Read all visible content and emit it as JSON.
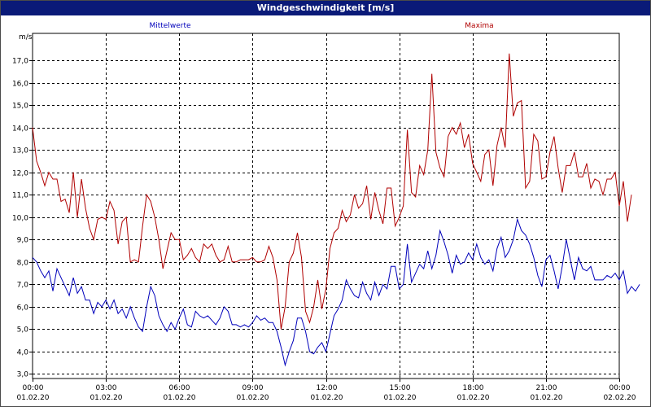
{
  "window": {
    "title": "Windgeschwindigkeit [m/s]"
  },
  "chart_data": {
    "type": "line",
    "title": "Windgeschwindigkeit [m/s]",
    "ylabel": "m/s",
    "xlabel": "",
    "ylim": [
      2.8,
      18.2
    ],
    "yticks": [
      "3,0",
      "4,0",
      "5,0",
      "6,0",
      "7,0",
      "8,0",
      "9,0",
      "10,0",
      "11,0",
      "12,0",
      "13,0",
      "14,0",
      "15,0",
      "16,0",
      "17,0"
    ],
    "xlim": [
      0,
      24
    ],
    "xticks": [
      {
        "x": 0,
        "time": "00:00",
        "date": "01.02.20"
      },
      {
        "x": 3,
        "time": "03:00",
        "date": "01.02.20"
      },
      {
        "x": 6,
        "time": "06:00",
        "date": "01.02.20"
      },
      {
        "x": 9,
        "time": "09:00",
        "date": "01.02.20"
      },
      {
        "x": 12,
        "time": "12:00",
        "date": "01.02.20"
      },
      {
        "x": 15,
        "time": "15:00",
        "date": "01.02.20"
      },
      {
        "x": 18,
        "time": "18:00",
        "date": "01.02.20"
      },
      {
        "x": 21,
        "time": "21:00",
        "date": "01.02.20"
      },
      {
        "x": 24,
        "time": "00:00",
        "date": "02.02.20"
      }
    ],
    "grid": true,
    "grid_style": "dashed",
    "x_step_hours": 0.16667,
    "series": [
      {
        "name": "Mittelwerte",
        "color": "#0000bb",
        "values": [
          8.2,
          8.0,
          7.6,
          7.3,
          7.6,
          6.7,
          7.7,
          7.3,
          6.9,
          6.5,
          7.3,
          6.6,
          6.9,
          6.3,
          6.3,
          5.7,
          6.2,
          6.0,
          6.3,
          5.9,
          6.3,
          5.7,
          5.9,
          5.5,
          6.0,
          5.5,
          5.1,
          4.9,
          6.0,
          6.9,
          6.5,
          5.6,
          5.2,
          4.9,
          5.3,
          5.0,
          5.5,
          5.9,
          5.2,
          5.1,
          5.8,
          5.6,
          5.5,
          5.6,
          5.4,
          5.2,
          5.5,
          6.0,
          5.8,
          5.2,
          5.2,
          5.1,
          5.2,
          5.1,
          5.3,
          5.6,
          5.4,
          5.5,
          5.3,
          5.3,
          4.9,
          4.2,
          3.4,
          4.0,
          4.5,
          5.5,
          5.5,
          4.9,
          4.0,
          3.9,
          4.2,
          4.4,
          4.0,
          4.8,
          5.6,
          5.9,
          6.3,
          7.2,
          6.8,
          6.5,
          6.4,
          7.1,
          6.6,
          6.3,
          7.1,
          6.5,
          7.0,
          6.8,
          7.8,
          7.8,
          6.8,
          7.0,
          8.8,
          7.1,
          7.5,
          7.9,
          7.7,
          8.5,
          7.7,
          8.3,
          9.4,
          8.9,
          8.3,
          7.5,
          8.3,
          7.9,
          8.0,
          8.4,
          8.1,
          8.8,
          8.2,
          7.9,
          8.1,
          7.6,
          8.6,
          9.1,
          8.2,
          8.5,
          9.0,
          9.9,
          9.4,
          9.2,
          8.8,
          8.2,
          7.4,
          6.9,
          8.1,
          8.3,
          7.6,
          6.8,
          7.8,
          9.0,
          8.1,
          7.2,
          8.2,
          7.7,
          7.6,
          7.8,
          7.2,
          7.2,
          7.2,
          7.4,
          7.3,
          7.5,
          7.2,
          7.6,
          6.6,
          6.9,
          6.7,
          7.0
        ]
      },
      {
        "name": "Maxima",
        "color": "#b00000",
        "values": [
          14.0,
          12.5,
          12.0,
          11.4,
          12.0,
          11.7,
          11.7,
          10.7,
          10.8,
          10.2,
          12.0,
          10.0,
          11.7,
          10.4,
          9.5,
          9.0,
          9.9,
          10.0,
          9.9,
          10.7,
          10.3,
          8.8,
          9.8,
          10.0,
          8.0,
          8.1,
          8.0,
          9.6,
          11.0,
          10.7,
          10.0,
          9.0,
          7.7,
          8.5,
          9.3,
          9.0,
          9.0,
          8.1,
          8.3,
          8.6,
          8.2,
          8.0,
          8.8,
          8.6,
          8.8,
          8.3,
          8.0,
          8.1,
          8.7,
          8.0,
          8.0,
          8.1,
          8.1,
          8.1,
          8.2,
          8.0,
          8.0,
          8.1,
          8.7,
          8.2,
          7.2,
          5.0,
          6.0,
          8.0,
          8.4,
          9.3,
          8.2,
          5.8,
          5.3,
          6.0,
          7.2,
          5.9,
          6.8,
          8.6,
          9.3,
          9.5,
          10.3,
          9.8,
          10.1,
          11.0,
          10.4,
          10.6,
          11.4,
          9.9,
          11.1,
          10.3,
          9.7,
          11.3,
          11.3,
          9.6,
          10.0,
          10.5,
          13.9,
          11.1,
          10.9,
          12.3,
          11.9,
          13.0,
          16.4,
          12.9,
          12.2,
          11.8,
          13.6,
          14.0,
          13.7,
          14.2,
          13.1,
          13.7,
          12.4,
          12.0,
          11.6,
          12.8,
          13.0,
          11.4,
          13.2,
          14.0,
          13.1,
          17.3,
          14.5,
          15.1,
          15.2,
          11.3,
          11.6,
          13.7,
          13.4,
          11.7,
          11.8,
          12.9,
          13.6,
          12.2,
          11.1,
          12.3,
          12.3,
          12.9,
          11.8,
          11.8,
          12.4,
          11.3,
          11.7,
          11.6,
          11.0,
          11.7,
          11.7,
          12.0,
          10.5,
          11.6,
          9.8,
          11.0
        ]
      }
    ],
    "legend": [
      {
        "name": "Mittelwerte",
        "color": "#0000bb",
        "placement": "top-left"
      },
      {
        "name": "Maxima",
        "color": "#b00000",
        "placement": "top-right"
      }
    ]
  }
}
